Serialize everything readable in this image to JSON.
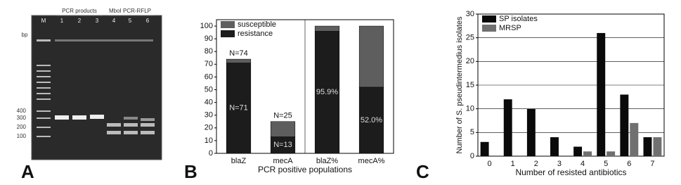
{
  "gel": {
    "unit": "bp",
    "lane_labels": [
      "M",
      "1",
      "2",
      "3",
      "4",
      "5",
      "6"
    ],
    "group_labels": [
      "PCR products",
      "MboI PCR-RFLP"
    ],
    "size_labels": [
      "400",
      "300",
      "200",
      "100"
    ]
  },
  "panel_letters": [
    "A",
    "B",
    "C"
  ],
  "chart_data": [
    {
      "type": "bar",
      "stacked": true,
      "x_label": "PCR positive populations",
      "categories": [
        "blaZ",
        "mecA",
        "blaZ%",
        "mecA%"
      ],
      "series": [
        {
          "name": "resistance",
          "color": "#1c1c1c",
          "values": [
            71,
            13,
            95.9,
            52.0
          ],
          "value_labels": [
            "N=71",
            "N=13",
            "95.9%",
            "52.0%"
          ]
        },
        {
          "name": "susceptible",
          "color": "#5e5e5e",
          "values": [
            3,
            12,
            4.1,
            48.0
          ]
        }
      ],
      "annotations": [
        "N=74",
        "N=25"
      ],
      "ylim": [
        0,
        105
      ],
      "yticks": [
        0,
        10,
        20,
        30,
        40,
        50,
        60,
        70,
        80,
        90,
        100
      ],
      "grid": false
    },
    {
      "type": "bar",
      "stacked": false,
      "x_label": "Number of resisted antibiotics",
      "y_label": "Number of S. pseudintermedius isolates",
      "categories": [
        "0",
        "1",
        "2",
        "3",
        "4",
        "5",
        "6",
        "7"
      ],
      "series": [
        {
          "name": "SP isolates",
          "color": "#0a0a0a",
          "values": [
            3,
            12,
            10,
            4,
            2,
            26,
            13,
            4
          ]
        },
        {
          "name": "MRSP",
          "color": "#707070",
          "values": [
            0,
            0,
            0,
            0,
            1,
            1,
            7,
            4
          ]
        }
      ],
      "ylim": [
        0,
        30
      ],
      "yticks": [
        0,
        5,
        10,
        15,
        20,
        25,
        30
      ],
      "grid": true
    }
  ]
}
